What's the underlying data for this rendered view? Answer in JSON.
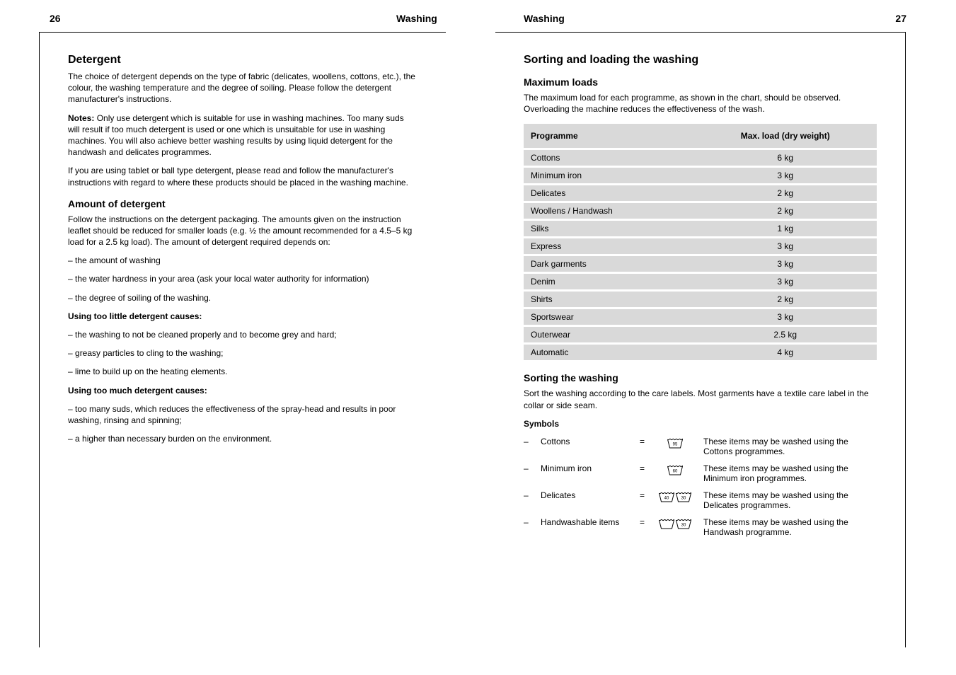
{
  "left": {
    "page_number": "26",
    "section_label": "Washing",
    "heading": "Detergent",
    "p1_a": "The choice of detergent depends on the type of fabric (delicates, woollens, cottons, etc.), the colour, the washing temperature and the degree of soiling. Please follow the detergent manufacturer's instructions.",
    "p1_b_label": "Notes:",
    "p1_b": "Only use detergent which is suitable for use in washing machines. Too many suds will result if too much detergent is used or one which is unsuitable for use in washing machines. You will also achieve better washing results by using liquid detergent for the handwash and delicates programmes.",
    "p2": "If you are using tablet or ball type detergent, please read and follow the manufacturer's instructions with regard to where these products should be placed in the washing machine.",
    "sub1": "Amount of detergent",
    "p3": "Follow the instructions on the detergent packaging. The amounts given on the instruction leaflet should be reduced for smaller loads (e.g. ½ the amount recommended for a 4.5–5 kg load for a 2.5 kg load). The amount of detergent required depends on:",
    "li1": "the amount of washing",
    "li2": "the water hardness in your area (ask your local water authority for information)",
    "li3": "the degree of soiling of the washing.",
    "p4_label": "Using too little detergent causes:",
    "p4a": "the washing to not be cleaned properly and to become grey and hard;",
    "p4b": "greasy particles to cling to the washing;",
    "p4c": "lime to build up on the heating elements.",
    "p5_label": "Using too much detergent causes:",
    "p5a": "too many suds, which reduces the effectiveness of the spray-head and results in poor washing, rinsing and spinning;",
    "p5b": "a higher than necessary burden on the environment."
  },
  "right": {
    "page_number": "27",
    "section_label": "Washing",
    "heading": "Sorting and loading the washing",
    "sub1": "Maximum loads",
    "intro": "The maximum load for each programme, as shown in the chart, should be observed. Overloading the machine reduces the effectiveness of the wash.",
    "table": {
      "headers": [
        "Programme",
        "Max. load (dry weight)"
      ],
      "rows": [
        [
          "Cottons",
          "6 kg"
        ],
        [
          "Minimum iron",
          "3 kg"
        ],
        [
          "Delicates",
          "2 kg"
        ],
        [
          "Woollens / Handwash",
          "2 kg"
        ],
        [
          "Silks",
          "1 kg"
        ],
        [
          "Express",
          "3 kg"
        ],
        [
          "Dark garments",
          "3 kg"
        ],
        [
          "Denim",
          "3 kg"
        ],
        [
          "Shirts",
          "2 kg"
        ],
        [
          "Sportswear",
          "3 kg"
        ],
        [
          "Outerwear",
          "2.5 kg"
        ],
        [
          "Automatic",
          "4 kg"
        ]
      ]
    },
    "sub2": "Sorting the washing",
    "p_sort": "Sort the washing according to the care labels. Most garments have a textile care label in the collar or side seam.",
    "sym_heading": "Symbols",
    "rows": [
      {
        "label": "Cottons",
        "count": 1,
        "t1": "95",
        "t2": "",
        "desc": "These items may be washed using the Cottons programmes."
      },
      {
        "label": "Minimum iron",
        "count": 1,
        "t1": "60",
        "t2": "",
        "desc": "These items may be washed using the Minimum iron programmes."
      },
      {
        "label": "Delicates",
        "count": 2,
        "t1": "40",
        "t2": "30",
        "desc": "These items may be washed using the Delicates programmes."
      },
      {
        "label": "Handwashable items",
        "count": 2,
        "t1": "30",
        "t2": "",
        "desc": "These items may be washed using the Handwash programme."
      }
    ],
    "handwash_note": "hand"
  },
  "style": {
    "table_bg": "#d9d9d9",
    "text_color": "#000000",
    "page_bg": "#ffffff"
  }
}
